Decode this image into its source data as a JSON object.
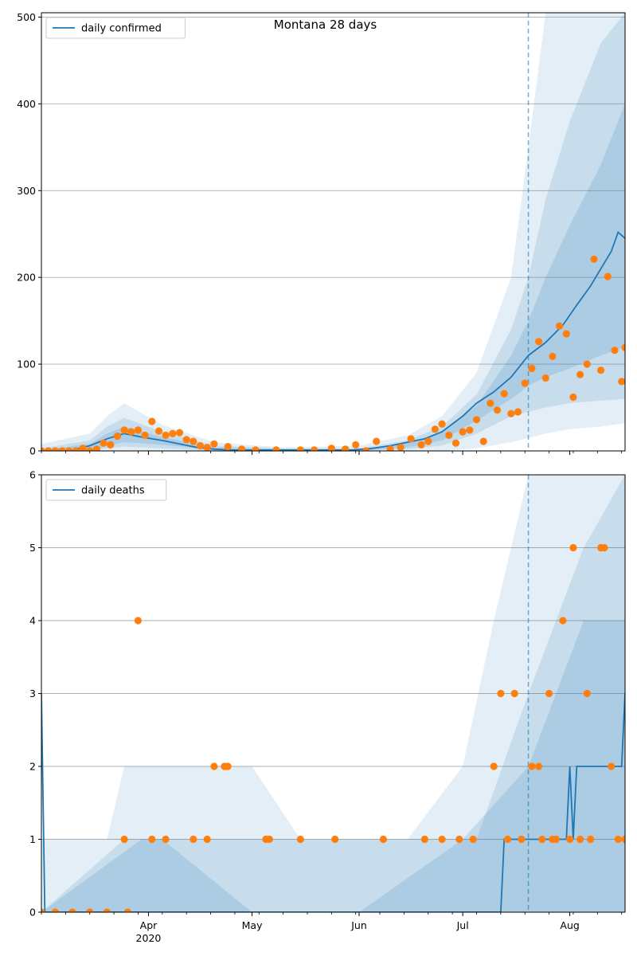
{
  "colors": {
    "line": "#1f77b4",
    "points": "#ff7f0e",
    "band": "#1f77b4",
    "grid": "#b0b0b0",
    "forecast_line": "#1f77b4"
  },
  "chart_data": [
    {
      "type": "line",
      "title": "Montana 28 days",
      "legend": "daily confirmed",
      "legend_position": "top-left",
      "grid": "horizontal",
      "ylim": [
        0,
        505
      ],
      "yticks": [
        "0",
        "100",
        "200",
        "300",
        "400",
        "500"
      ],
      "xaxis": "date",
      "xlim": [
        "2020-03-01",
        "2020-08-17"
      ],
      "forecast_start": "2020-07-20",
      "series_line": {
        "name": "daily confirmed",
        "x": [
          "2020-03-01",
          "2020-03-10",
          "2020-03-15",
          "2020-03-20",
          "2020-03-25",
          "2020-03-30",
          "2020-04-05",
          "2020-04-10",
          "2020-04-15",
          "2020-04-20",
          "2020-04-25",
          "2020-05-01",
          "2020-05-10",
          "2020-05-20",
          "2020-05-30",
          "2020-06-05",
          "2020-06-10",
          "2020-06-15",
          "2020-06-20",
          "2020-06-25",
          "2020-07-01",
          "2020-07-05",
          "2020-07-10",
          "2020-07-15",
          "2020-07-20",
          "2020-07-25",
          "2020-07-30",
          "2020-08-03",
          "2020-08-07",
          "2020-08-10",
          "2020-08-13",
          "2020-08-15",
          "2020-08-17"
        ],
        "y": [
          0,
          1,
          6,
          14,
          20,
          16,
          12,
          8,
          4,
          2,
          1,
          1,
          1,
          1,
          1,
          3,
          6,
          10,
          14,
          22,
          40,
          55,
          68,
          85,
          110,
          125,
          145,
          168,
          190,
          210,
          230,
          252,
          245
        ]
      },
      "band_outer": {
        "x": [
          "2020-03-01",
          "2020-03-15",
          "2020-03-20",
          "2020-03-25",
          "2020-04-05",
          "2020-04-20",
          "2020-05-10",
          "2020-06-01",
          "2020-06-15",
          "2020-06-25",
          "2020-07-05",
          "2020-07-15",
          "2020-07-20",
          "2020-07-25",
          "2020-08-01",
          "2020-08-10",
          "2020-08-17"
        ],
        "low": [
          0,
          0,
          0,
          0,
          0,
          0,
          0,
          0,
          0,
          0,
          3,
          10,
          15,
          20,
          25,
          28,
          32
        ],
        "high": [
          8,
          20,
          40,
          55,
          30,
          10,
          4,
          6,
          18,
          40,
          90,
          200,
          350,
          505,
          505,
          505,
          505
        ]
      },
      "band_mid": {
        "x": [
          "2020-03-01",
          "2020-03-15",
          "2020-03-20",
          "2020-03-25",
          "2020-04-05",
          "2020-04-20",
          "2020-05-10",
          "2020-06-01",
          "2020-06-15",
          "2020-06-25",
          "2020-07-05",
          "2020-07-15",
          "2020-07-20",
          "2020-07-25",
          "2020-08-01",
          "2020-08-10",
          "2020-08-17"
        ],
        "low": [
          0,
          0,
          3,
          5,
          3,
          0,
          0,
          0,
          2,
          6,
          20,
          40,
          45,
          50,
          55,
          58,
          60
        ],
        "high": [
          3,
          12,
          28,
          38,
          22,
          6,
          3,
          3,
          12,
          28,
          65,
          140,
          200,
          290,
          380,
          470,
          505
        ]
      },
      "band_inner": {
        "x": [
          "2020-03-01",
          "2020-03-15",
          "2020-03-20",
          "2020-03-25",
          "2020-04-05",
          "2020-04-20",
          "2020-05-10",
          "2020-06-01",
          "2020-06-15",
          "2020-06-25",
          "2020-07-05",
          "2020-07-15",
          "2020-07-20",
          "2020-07-25",
          "2020-08-01",
          "2020-08-10",
          "2020-08-17"
        ],
        "low": [
          0,
          0,
          6,
          10,
          7,
          1,
          0,
          0,
          4,
          12,
          35,
          60,
          75,
          85,
          95,
          110,
          120
        ],
        "high": [
          1,
          8,
          20,
          28,
          16,
          4,
          2,
          2,
          9,
          22,
          52,
          110,
          150,
          200,
          260,
          330,
          400
        ]
      },
      "series_points": {
        "name": "observed",
        "x": [
          "2020-03-01",
          "2020-03-03",
          "2020-03-05",
          "2020-03-07",
          "2020-03-09",
          "2020-03-11",
          "2020-03-13",
          "2020-03-15",
          "2020-03-17",
          "2020-03-19",
          "2020-03-21",
          "2020-03-23",
          "2020-03-25",
          "2020-03-27",
          "2020-03-29",
          "2020-03-31",
          "2020-04-02",
          "2020-04-04",
          "2020-04-06",
          "2020-04-08",
          "2020-04-10",
          "2020-04-12",
          "2020-04-14",
          "2020-04-16",
          "2020-04-18",
          "2020-04-20",
          "2020-04-24",
          "2020-04-28",
          "2020-05-02",
          "2020-05-08",
          "2020-05-15",
          "2020-05-19",
          "2020-05-24",
          "2020-05-28",
          "2020-05-31",
          "2020-06-03",
          "2020-06-06",
          "2020-06-10",
          "2020-06-13",
          "2020-06-16",
          "2020-06-19",
          "2020-06-21",
          "2020-06-23",
          "2020-06-25",
          "2020-06-27",
          "2020-06-29",
          "2020-07-01",
          "2020-07-03",
          "2020-07-05",
          "2020-07-07",
          "2020-07-09",
          "2020-07-11",
          "2020-07-13",
          "2020-07-15",
          "2020-07-17",
          "2020-07-19",
          "2020-07-21",
          "2020-07-23",
          "2020-07-25",
          "2020-07-27",
          "2020-07-29",
          "2020-07-31",
          "2020-08-02",
          "2020-08-04",
          "2020-08-06",
          "2020-08-08",
          "2020-08-10",
          "2020-08-12",
          "2020-08-14",
          "2020-08-16",
          "2020-08-17"
        ],
        "y": [
          0,
          0,
          0,
          0,
          0,
          0,
          3,
          0,
          2,
          9,
          7,
          17,
          24,
          22,
          24,
          18,
          34,
          23,
          18,
          20,
          21,
          13,
          11,
          6,
          4,
          8,
          5,
          2,
          1,
          1,
          1,
          1,
          3,
          2,
          7,
          0,
          11,
          2,
          4,
          14,
          7,
          11,
          25,
          31,
          18,
          9,
          22,
          24,
          36,
          11,
          55,
          47,
          66,
          43,
          45,
          78,
          95,
          126,
          84,
          109,
          144,
          135,
          62,
          88,
          100,
          221,
          93,
          201,
          116,
          80,
          119
        ]
      }
    },
    {
      "type": "line",
      "title": "",
      "legend": "daily deaths",
      "legend_position": "top-left",
      "grid": "horizontal",
      "ylim": [
        0,
        6
      ],
      "yticks": [
        "0",
        "1",
        "2",
        "3",
        "4",
        "5",
        "6"
      ],
      "xaxis": "date",
      "xlim": [
        "2020-03-01",
        "2020-08-17"
      ],
      "xticks": [
        {
          "date": "2020-04-01",
          "label": "Apr",
          "sub": "2020"
        },
        {
          "date": "2020-05-01",
          "label": "May",
          "sub": ""
        },
        {
          "date": "2020-06-01",
          "label": "Jun",
          "sub": ""
        },
        {
          "date": "2020-07-01",
          "label": "Jul",
          "sub": ""
        },
        {
          "date": "2020-08-01",
          "label": "Aug",
          "sub": ""
        }
      ],
      "forecast_start": "2020-07-20",
      "series_line": {
        "name": "daily deaths",
        "x": [
          "2020-03-01",
          "2020-03-02",
          "2020-07-12",
          "2020-07-13",
          "2020-07-31",
          "2020-08-01",
          "2020-08-02",
          "2020-08-03",
          "2020-08-16",
          "2020-08-17"
        ],
        "y": [
          3,
          0,
          0,
          1,
          1,
          2,
          1,
          2,
          2,
          3
        ]
      },
      "band_outer": {
        "x": [
          "2020-03-01",
          "2020-03-20",
          "2020-03-25",
          "2020-04-01",
          "2020-05-01",
          "2020-05-15",
          "2020-06-01",
          "2020-06-15",
          "2020-07-01",
          "2020-07-10",
          "2020-07-20",
          "2020-07-28",
          "2020-08-05",
          "2020-08-17"
        ],
        "low": [
          0,
          0,
          0,
          0,
          0,
          0,
          0,
          0,
          0,
          0,
          0,
          0,
          0,
          0
        ],
        "high": [
          1,
          1,
          2,
          2,
          2,
          1,
          1,
          1,
          2,
          4,
          6,
          6,
          6,
          6
        ]
      },
      "band_mid": {
        "x": [
          "2020-03-01",
          "2020-03-25",
          "2020-04-01",
          "2020-05-01",
          "2020-06-01",
          "2020-06-20",
          "2020-07-05",
          "2020-07-20",
          "2020-07-28",
          "2020-08-05",
          "2020-08-17"
        ],
        "low": [
          0,
          0,
          0,
          0,
          0,
          0,
          0,
          0,
          0,
          0,
          0
        ],
        "high": [
          0,
          1,
          1,
          1,
          1,
          1,
          1,
          3,
          4,
          5,
          6
        ]
      },
      "band_inner": {
        "x": [
          "2020-03-01",
          "2020-03-30",
          "2020-04-05",
          "2020-05-01",
          "2020-06-01",
          "2020-07-01",
          "2020-07-20",
          "2020-07-28",
          "2020-08-05",
          "2020-08-17"
        ],
        "low": [
          0,
          0,
          0,
          0,
          0,
          0,
          0,
          0,
          0,
          0
        ],
        "high": [
          0,
          1,
          1,
          0,
          0,
          1,
          2,
          3,
          4,
          4
        ]
      },
      "series_points": {
        "name": "observed",
        "x": [
          "2020-03-01",
          "2020-03-05",
          "2020-03-10",
          "2020-03-15",
          "2020-03-20",
          "2020-03-25",
          "2020-03-26",
          "2020-03-29",
          "2020-04-02",
          "2020-04-06",
          "2020-04-14",
          "2020-04-18",
          "2020-04-20",
          "2020-04-23",
          "2020-04-24",
          "2020-05-05",
          "2020-05-06",
          "2020-05-15",
          "2020-05-25",
          "2020-06-08",
          "2020-06-20",
          "2020-06-25",
          "2020-06-30",
          "2020-07-04",
          "2020-07-10",
          "2020-07-12",
          "2020-07-14",
          "2020-07-16",
          "2020-07-18",
          "2020-07-21",
          "2020-07-23",
          "2020-07-24",
          "2020-07-26",
          "2020-07-27",
          "2020-07-28",
          "2020-07-30",
          "2020-08-01",
          "2020-08-02",
          "2020-08-04",
          "2020-08-06",
          "2020-08-07",
          "2020-08-10",
          "2020-08-11",
          "2020-08-13",
          "2020-08-15",
          "2020-08-17"
        ],
        "y": [
          0,
          0,
          0,
          0,
          0,
          1,
          0,
          4,
          1,
          1,
          1,
          1,
          2,
          2,
          2,
          1,
          1,
          1,
          1,
          1,
          1,
          1,
          1,
          1,
          2,
          3,
          1,
          3,
          1,
          2,
          2,
          1,
          3,
          1,
          1,
          4,
          1,
          5,
          1,
          3,
          1,
          5,
          5,
          2,
          1,
          1
        ]
      }
    }
  ]
}
